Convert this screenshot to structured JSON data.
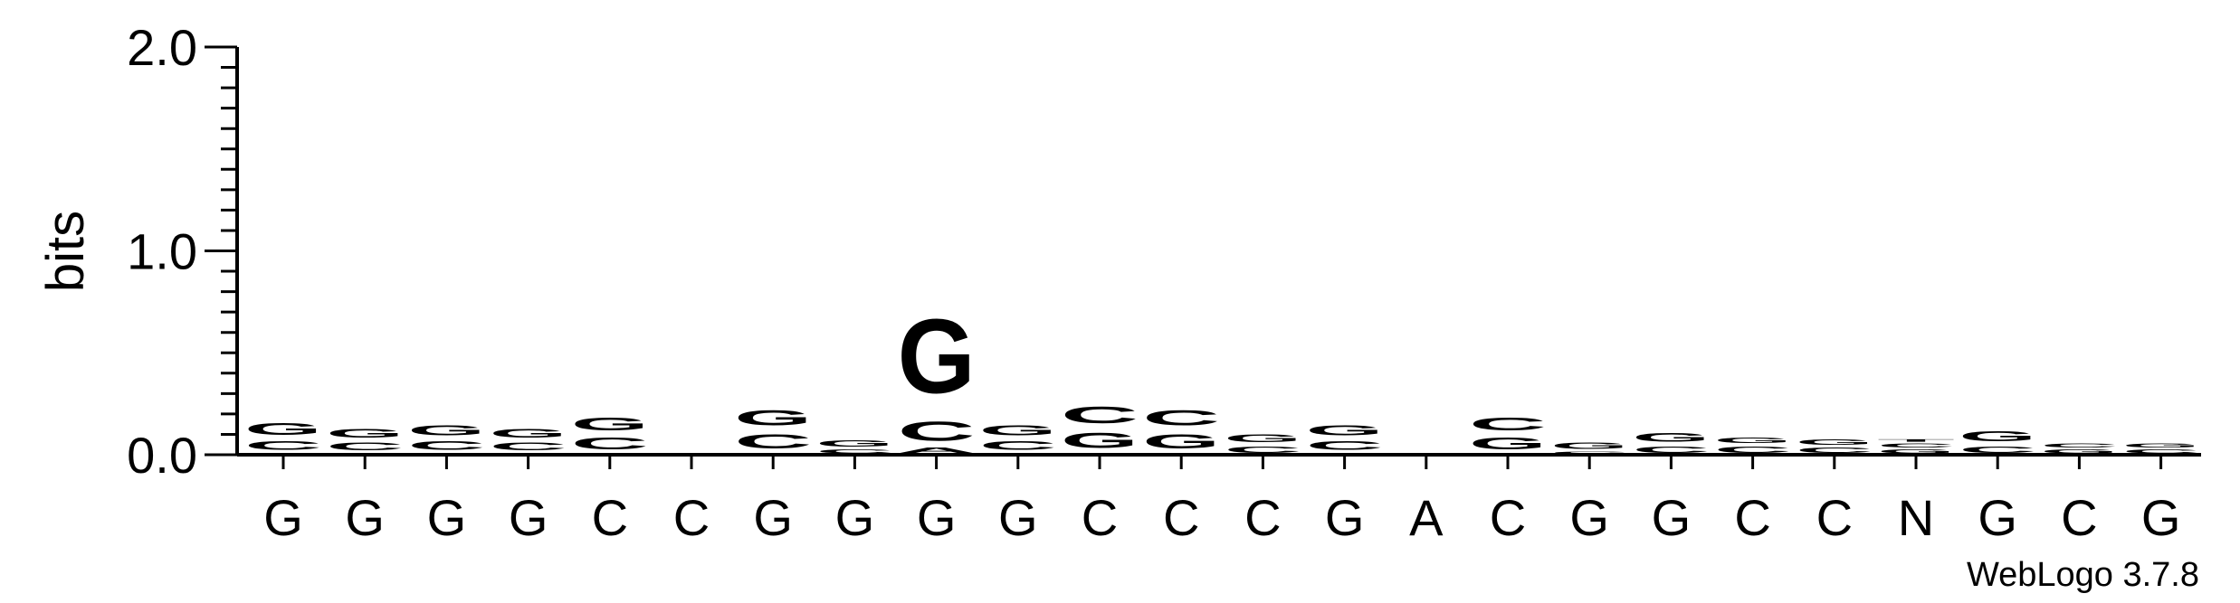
{
  "chart_data": {
    "type": "sequence_logo",
    "ylabel": "bits",
    "ylim": [
      0,
      2.0
    ],
    "yticks": [
      "0.0",
      "1.0",
      "2.0"
    ],
    "xticks": [
      "G",
      "G",
      "G",
      "G",
      "C",
      "C",
      "G",
      "G",
      "G",
      "G",
      "C",
      "C",
      "C",
      "G",
      "A",
      "C",
      "G",
      "G",
      "C",
      "C",
      "N",
      "G",
      "C",
      "G"
    ],
    "colors": {
      "A": "#ff8c00",
      "C": "#0000ee",
      "G": "#0000ee",
      "T": "#0000ee"
    },
    "stacks": [
      [
        {
          "l": "A",
          "h": 0.01
        },
        {
          "l": "C",
          "h": 0.07
        },
        {
          "l": "G",
          "h": 0.09
        }
      ],
      [
        {
          "l": "A",
          "h": 0.01
        },
        {
          "l": "C",
          "h": 0.06
        },
        {
          "l": "G",
          "h": 0.07
        }
      ],
      [
        {
          "l": "A",
          "h": 0.01
        },
        {
          "l": "C",
          "h": 0.07
        },
        {
          "l": "G",
          "h": 0.08
        }
      ],
      [
        {
          "l": "A",
          "h": 0.01
        },
        {
          "l": "C",
          "h": 0.06
        },
        {
          "l": "G",
          "h": 0.07
        }
      ],
      [
        {
          "l": "A",
          "h": 0.01
        },
        {
          "l": "C",
          "h": 0.09
        },
        {
          "l": "G",
          "h": 0.1
        }
      ],
      [
        {
          "l": "C",
          "h": 0.01
        }
      ],
      [
        {
          "l": "A",
          "h": 0.01
        },
        {
          "l": "C",
          "h": 0.11
        },
        {
          "l": "G",
          "h": 0.12
        }
      ],
      [
        {
          "l": "C",
          "h": 0.03
        },
        {
          "l": "G",
          "h": 0.05
        }
      ],
      [
        {
          "l": "A",
          "h": 0.04
        },
        {
          "l": "C",
          "h": 0.15
        },
        {
          "l": "G",
          "h": 0.58
        }
      ],
      [
        {
          "l": "A",
          "h": 0.01
        },
        {
          "l": "C",
          "h": 0.07
        },
        {
          "l": "G",
          "h": 0.08
        }
      ],
      [
        {
          "l": "A",
          "h": 0.01
        },
        {
          "l": "G",
          "h": 0.12
        },
        {
          "l": "C",
          "h": 0.13
        }
      ],
      [
        {
          "l": "A",
          "h": 0.01
        },
        {
          "l": "G",
          "h": 0.11
        },
        {
          "l": "C",
          "h": 0.12
        }
      ],
      [
        {
          "l": "C",
          "h": 0.05
        },
        {
          "l": "G",
          "h": 0.06
        }
      ],
      [
        {
          "l": "A",
          "h": 0.01
        },
        {
          "l": "C",
          "h": 0.07
        },
        {
          "l": "G",
          "h": 0.08
        }
      ],
      [],
      [
        {
          "l": "A",
          "h": 0.01
        },
        {
          "l": "G",
          "h": 0.09
        },
        {
          "l": "C",
          "h": 0.1
        }
      ],
      [
        {
          "l": "C",
          "h": 0.02
        },
        {
          "l": "G",
          "h": 0.05
        }
      ],
      [
        {
          "l": "C",
          "h": 0.05
        },
        {
          "l": "G",
          "h": 0.07
        }
      ],
      [
        {
          "l": "C",
          "h": 0.05
        },
        {
          "l": "G",
          "h": 0.04
        }
      ],
      [
        {
          "l": "C",
          "h": 0.04
        },
        {
          "l": "G",
          "h": 0.04
        }
      ],
      [
        {
          "l": "G",
          "h": 0.03
        },
        {
          "l": "C",
          "h": 0.03
        },
        {
          "l": "T",
          "h": 0.02
        }
      ],
      [
        {
          "l": "C",
          "h": 0.05
        },
        {
          "l": "G",
          "h": 0.08
        }
      ],
      [
        {
          "l": "G",
          "h": 0.03
        },
        {
          "l": "C",
          "h": 0.03
        }
      ],
      [
        {
          "l": "C",
          "h": 0.03
        },
        {
          "l": "G",
          "h": 0.03
        }
      ]
    ],
    "credit": "WebLogo 3.7.8"
  }
}
